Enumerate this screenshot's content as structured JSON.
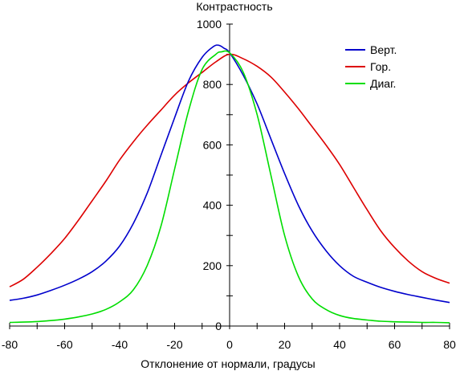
{
  "chart_data": {
    "type": "line",
    "title": "",
    "xlabel": "Отклонение от нормали, градусы",
    "ylabel": "Контрастность",
    "xlim": [
      -80,
      80
    ],
    "ylim": [
      0,
      1000
    ],
    "x_ticks": [
      "-80",
      "-60",
      "-40",
      "-20",
      "0",
      "20",
      "40",
      "60",
      "80"
    ],
    "y_ticks": [
      "0",
      "200",
      "400",
      "600",
      "800",
      "1000"
    ],
    "grid": false,
    "legend_position": "top-right",
    "series": [
      {
        "name": "Верт.",
        "color": "#0000cc",
        "x": [
          -80,
          -75,
          -70,
          -65,
          -60,
          -55,
          -50,
          -45,
          -40,
          -35,
          -30,
          -25,
          -20,
          -15,
          -10,
          -6,
          -4,
          -2,
          0,
          5,
          10,
          15,
          20,
          25,
          30,
          35,
          40,
          45,
          50,
          55,
          60,
          65,
          70,
          75,
          80
        ],
        "y": [
          85,
          92,
          103,
          118,
          135,
          155,
          180,
          215,
          265,
          340,
          440,
          565,
          690,
          810,
          890,
          925,
          930,
          920,
          905,
          830,
          735,
          620,
          505,
          400,
          315,
          250,
          200,
          165,
          145,
          128,
          115,
          104,
          95,
          86,
          78
        ]
      },
      {
        "name": "Гор.",
        "color": "#dd0000",
        "x": [
          -80,
          -75,
          -70,
          -65,
          -60,
          -55,
          -50,
          -45,
          -40,
          -35,
          -30,
          -25,
          -20,
          -15,
          -10,
          -5,
          0,
          5,
          10,
          15,
          20,
          25,
          30,
          35,
          40,
          45,
          50,
          55,
          60,
          65,
          70,
          75,
          80
        ],
        "y": [
          130,
          155,
          195,
          240,
          290,
          350,
          415,
          480,
          550,
          610,
          665,
          715,
          765,
          805,
          840,
          875,
          900,
          885,
          860,
          825,
          775,
          720,
          660,
          600,
          535,
          460,
          385,
          315,
          260,
          215,
          180,
          158,
          142
        ]
      },
      {
        "name": "Диаг.",
        "color": "#00dd00",
        "x": [
          -80,
          -75,
          -70,
          -65,
          -60,
          -55,
          -50,
          -45,
          -40,
          -35,
          -30,
          -25,
          -20,
          -15,
          -10,
          -5,
          -3,
          0,
          5,
          10,
          15,
          20,
          25,
          30,
          35,
          40,
          45,
          50,
          55,
          60,
          65,
          70,
          75,
          80
        ],
        "y": [
          12,
          13,
          15,
          18,
          23,
          30,
          40,
          55,
          80,
          120,
          200,
          330,
          520,
          710,
          850,
          900,
          908,
          905,
          840,
          700,
          500,
          300,
          165,
          90,
          55,
          35,
          25,
          20,
          16,
          14,
          13,
          12,
          12,
          11
        ]
      }
    ]
  }
}
